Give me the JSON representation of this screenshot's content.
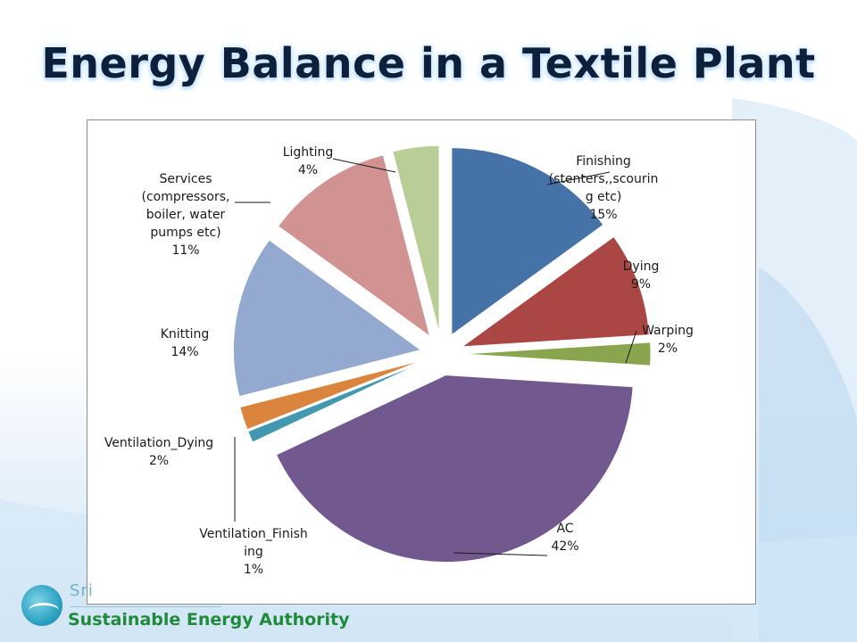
{
  "slide": {
    "title": "Energy Balance in a Textile Plant",
    "footer_org": "Sustainable Energy Authority",
    "footer_logo_partial": "Sri"
  },
  "chart_data": {
    "type": "pie",
    "start_angle_deg": 0,
    "direction": "clockwise",
    "exploded": true,
    "slices": [
      {
        "name": "Finishing (stenters,,scouring etc)",
        "value": 15,
        "label_lines": [
          "Finishing",
          "(stenters,,scourin",
          "g etc)",
          "15%"
        ],
        "color": "#4572A7"
      },
      {
        "name": "Dying",
        "value": 9,
        "label_lines": [
          "Dying",
          "9%"
        ],
        "color": "#AA4643"
      },
      {
        "name": "Warping",
        "value": 2,
        "label_lines": [
          "Warping",
          "2%"
        ],
        "color": "#89A54E"
      },
      {
        "name": "AC",
        "value": 42,
        "label_lines": [
          "AC",
          "42%"
        ],
        "color": "#71588F"
      },
      {
        "name": "Ventilation_Finishing",
        "value": 1,
        "label_lines": [
          "Ventilation_Finish",
          "ing",
          "1%"
        ],
        "color": "#4198AF"
      },
      {
        "name": "Ventilation_Dying",
        "value": 2,
        "label_lines": [
          "Ventilation_Dying",
          "2%"
        ],
        "color": "#DB843D"
      },
      {
        "name": "Knitting",
        "value": 14,
        "label_lines": [
          "Knitting",
          "14%"
        ],
        "color": "#93A9CF"
      },
      {
        "name": "Services (compressors, boiler, water pumps etc)",
        "value": 11,
        "label_lines": [
          "Services",
          "(compressors,",
          "boiler, water",
          "pumps etc)",
          "11%"
        ],
        "color": "#D19392"
      },
      {
        "name": "Lighting",
        "value": 4,
        "label_lines": [
          "Lighting",
          "4%"
        ],
        "color": "#B9CD96"
      }
    ]
  }
}
